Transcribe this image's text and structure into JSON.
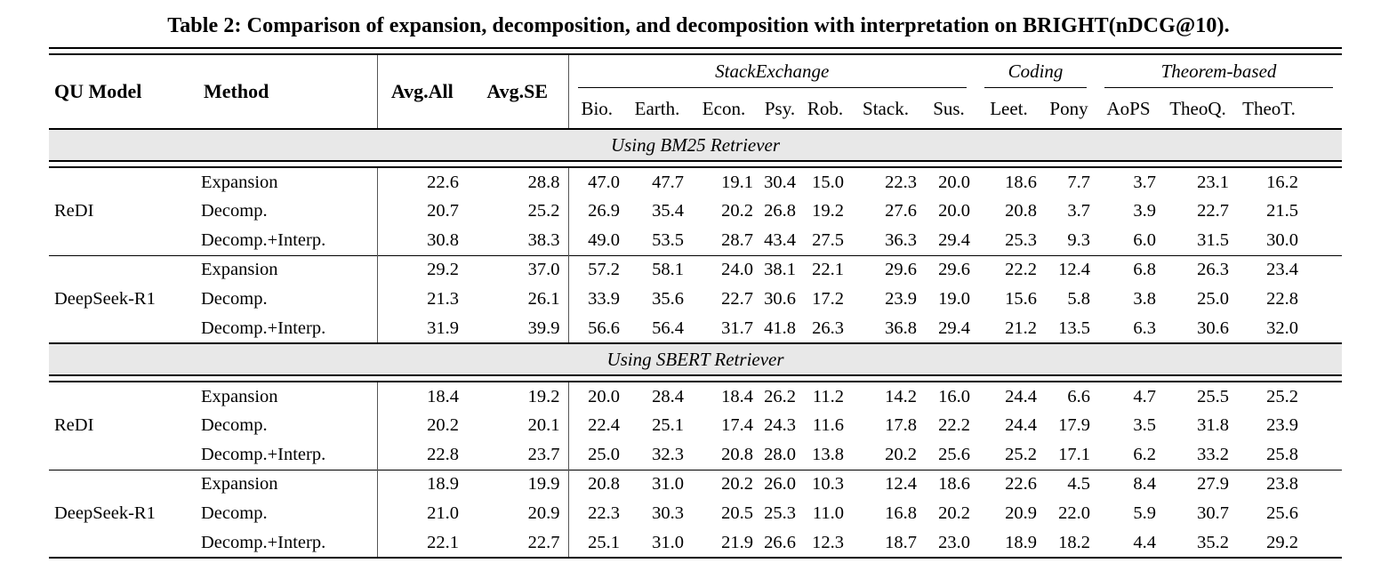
{
  "title": "Table 2: Comparison of expansion, decomposition, and decomposition with interpretation on BRIGHT(nDCG@10).",
  "colors": {
    "band_bg": "#e8e8e8",
    "rule": "#000000",
    "text": "#000000"
  },
  "columns": {
    "qu_model": "QU Model",
    "method": "Method",
    "avg_all": "Avg.All",
    "avg_se": "Avg.SE",
    "groups": [
      {
        "label": "StackExchange",
        "cols": [
          "Bio.",
          "Earth.",
          "Econ.",
          "Psy.",
          "Rob.",
          "Stack.",
          "Sus."
        ]
      },
      {
        "label": "Coding",
        "cols": [
          "Leet.",
          "Pony"
        ]
      },
      {
        "label": "Theorem-based",
        "cols": [
          "AoPS",
          "TheoQ.",
          "TheoT."
        ]
      }
    ]
  },
  "sections": [
    {
      "label": "Using BM25 Retriever",
      "blocks": [
        {
          "model": "ReDI",
          "model_bold": true,
          "rows": [
            {
              "method": "Expansion",
              "values": [
                "22.6",
                "28.8",
                "47.0",
                "47.7",
                "19.1",
                "30.4",
                "15.0",
                "22.3",
                "20.0",
                "18.6",
                "7.7",
                "3.7",
                "23.1",
                "16.2"
              ],
              "bold": []
            },
            {
              "method": "Decomp.",
              "values": [
                "20.7",
                "25.2",
                "26.9",
                "35.4",
                "20.2",
                "26.8",
                "19.2",
                "27.6",
                "20.0",
                "20.8",
                "3.7",
                "3.9",
                "22.7",
                "21.5"
              ],
              "bold": []
            },
            {
              "method": "Decomp.+Interp.",
              "values": [
                "30.8",
                "38.3",
                "49.0",
                "53.5",
                "28.7",
                "43.4",
                "27.5",
                "36.3",
                "29.4",
                "25.3",
                "9.3",
                "6.0",
                "31.5",
                "30.0"
              ],
              "bold": [
                0,
                1,
                2,
                3,
                4,
                5,
                6,
                7,
                8,
                9,
                10,
                11,
                12,
                13
              ]
            }
          ]
        },
        {
          "model": "DeepSeek-R1",
          "model_bold": false,
          "rows": [
            {
              "method": "Expansion",
              "values": [
                "29.2",
                "37.0",
                "57.2",
                "58.1",
                "24.0",
                "38.1",
                "22.1",
                "29.6",
                "29.6",
                "22.2",
                "12.4",
                "6.8",
                "26.3",
                "23.4"
              ],
              "bold": [
                2,
                3,
                8,
                9,
                11
              ]
            },
            {
              "method": "Decomp.",
              "values": [
                "21.3",
                "26.1",
                "33.9",
                "35.6",
                "22.7",
                "30.6",
                "17.2",
                "23.9",
                "19.0",
                "15.6",
                "5.8",
                "3.8",
                "25.0",
                "22.8"
              ],
              "bold": []
            },
            {
              "method": "Decomp.+Interp.",
              "values": [
                "31.9",
                "39.9",
                "56.6",
                "56.4",
                "31.7",
                "41.8",
                "26.3",
                "36.8",
                "29.4",
                "21.2",
                "13.5",
                "6.3",
                "30.6",
                "32.0"
              ],
              "bold": [
                0,
                1,
                4,
                5,
                6,
                7,
                10,
                12,
                13
              ]
            }
          ]
        }
      ]
    },
    {
      "label": "Using SBERT Retriever",
      "blocks": [
        {
          "model": "ReDI",
          "model_bold": true,
          "rows": [
            {
              "method": "Expansion",
              "values": [
                "18.4",
                "19.2",
                "20.0",
                "28.4",
                "18.4",
                "26.2",
                "11.2",
                "14.2",
                "16.0",
                "24.4",
                "6.6",
                "4.7",
                "25.5",
                "25.2"
              ],
              "bold": []
            },
            {
              "method": "Decomp.",
              "values": [
                "20.2",
                "20.1",
                "22.4",
                "25.1",
                "17.4",
                "24.3",
                "11.6",
                "17.8",
                "22.2",
                "24.4",
                "17.9",
                "3.5",
                "31.8",
                "23.9"
              ],
              "bold": [
                10
              ]
            },
            {
              "method": "Decomp.+Interp.",
              "values": [
                "22.8",
                "23.7",
                "25.0",
                "32.3",
                "20.8",
                "28.0",
                "13.8",
                "20.2",
                "25.6",
                "25.2",
                "17.1",
                "6.2",
                "33.2",
                "25.8"
              ],
              "bold": [
                0,
                1,
                2,
                3,
                4,
                5,
                6,
                7,
                8,
                9,
                11,
                12,
                13
              ]
            }
          ]
        },
        {
          "model": "DeepSeek-R1",
          "model_bold": false,
          "rows": [
            {
              "method": "Expansion",
              "values": [
                "18.9",
                "19.9",
                "20.8",
                "31.0",
                "20.2",
                "26.0",
                "10.3",
                "12.4",
                "18.6",
                "22.6",
                "4.5",
                "8.4",
                "27.9",
                "23.8"
              ],
              "bold": [
                3,
                9,
                11
              ]
            },
            {
              "method": "Decomp.",
              "values": [
                "21.0",
                "20.9",
                "22.3",
                "30.3",
                "20.5",
                "25.3",
                "11.0",
                "16.8",
                "20.2",
                "20.9",
                "22.0",
                "5.9",
                "30.7",
                "25.6"
              ],
              "bold": [
                10
              ]
            },
            {
              "method": "Decomp.+Interp.",
              "values": [
                "22.1",
                "22.7",
                "25.1",
                "31.0",
                "21.9",
                "26.6",
                "12.3",
                "18.7",
                "23.0",
                "18.9",
                "18.2",
                "4.4",
                "35.2",
                "29.2"
              ],
              "bold": [
                0,
                1,
                2,
                3,
                4,
                5,
                6,
                7,
                8,
                12,
                13
              ]
            }
          ]
        }
      ]
    }
  ]
}
